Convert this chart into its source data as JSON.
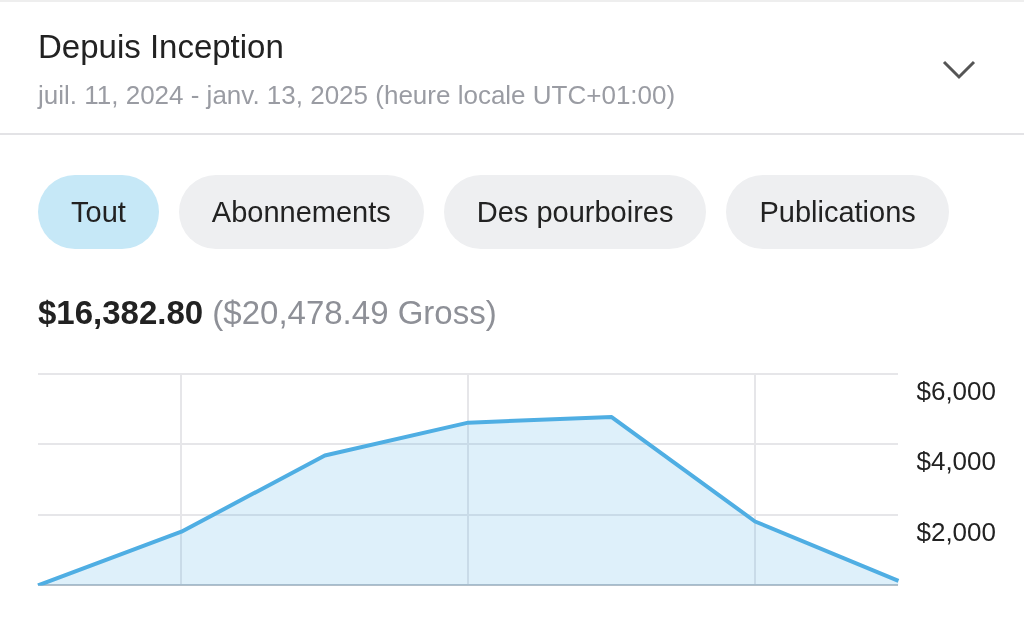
{
  "chart_data": {
    "type": "area",
    "title": "Depuis Inception",
    "subtitle": "juil. 11, 2024 - janv. 13, 2025 (heure locale UTC+01:00)",
    "annotations": [
      "Tout",
      "Abonnements",
      "Des pourboires",
      "Publications",
      "$16,382.80",
      "($20,478.49 Gross)"
    ],
    "categories": [
      null,
      null,
      null,
      null,
      null,
      null,
      null
    ],
    "series": [
      {
        "color": "#4faee3",
        "values": [
          0,
          1520,
          3680,
          4610,
          4770,
          1810,
          130
        ]
      }
    ],
    "ylim": [
      0,
      6000
    ],
    "yticks": [
      {
        "value": 0,
        "label": null
      },
      {
        "value": 2000,
        "label": "$2,000"
      },
      {
        "value": 4000,
        "label": "$4,000"
      },
      {
        "value": 6000,
        "label": "$6,000"
      }
    ],
    "grid": true,
    "legend": false
  }
}
